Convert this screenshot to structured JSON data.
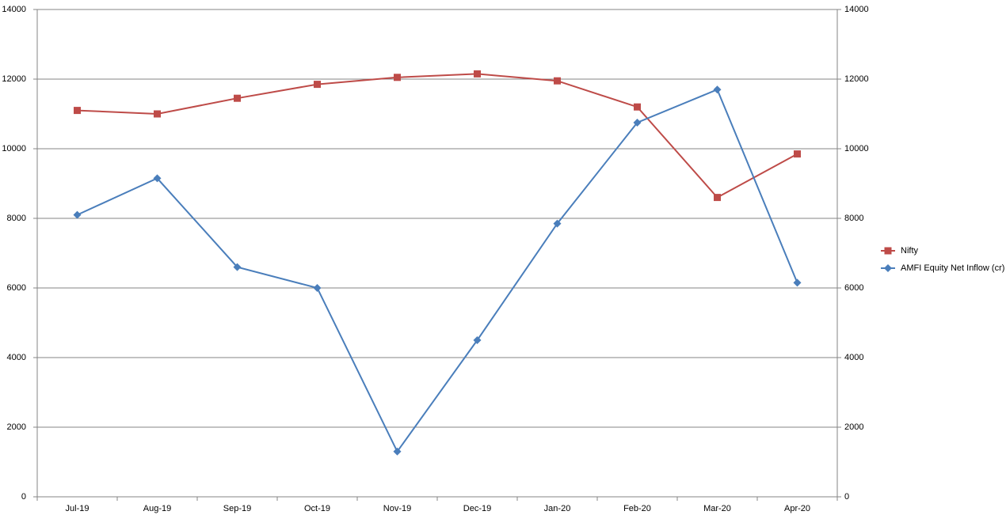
{
  "chart_data": {
    "type": "line",
    "categories": [
      "Jul-19",
      "Aug-19",
      "Sep-19",
      "Oct-19",
      "Nov-19",
      "Dec-19",
      "Jan-20",
      "Feb-20",
      "Mar-20",
      "Apr-20"
    ],
    "series": [
      {
        "name": "Nifty",
        "color": "#be4b48",
        "marker": "square",
        "axis": "y",
        "values": [
          11100,
          11000,
          11450,
          11850,
          12050,
          12150,
          11950,
          11200,
          8600,
          9850
        ]
      },
      {
        "name": "AMFI Equity Net Inflow (cr)",
        "color": "#4a7ebb",
        "marker": "diamond",
        "axis": "y2",
        "values": [
          8100,
          9150,
          6600,
          6000,
          1300,
          4500,
          7850,
          10750,
          11700,
          6150
        ]
      }
    ],
    "ylim": [
      0,
      14000
    ],
    "yticks": [
      0,
      2000,
      4000,
      6000,
      8000,
      10000,
      12000,
      14000
    ],
    "y2lim": [
      0,
      14000
    ],
    "y2ticks": [
      0,
      2000,
      4000,
      6000,
      8000,
      10000,
      12000,
      14000
    ],
    "grid": true,
    "legend": "right"
  }
}
